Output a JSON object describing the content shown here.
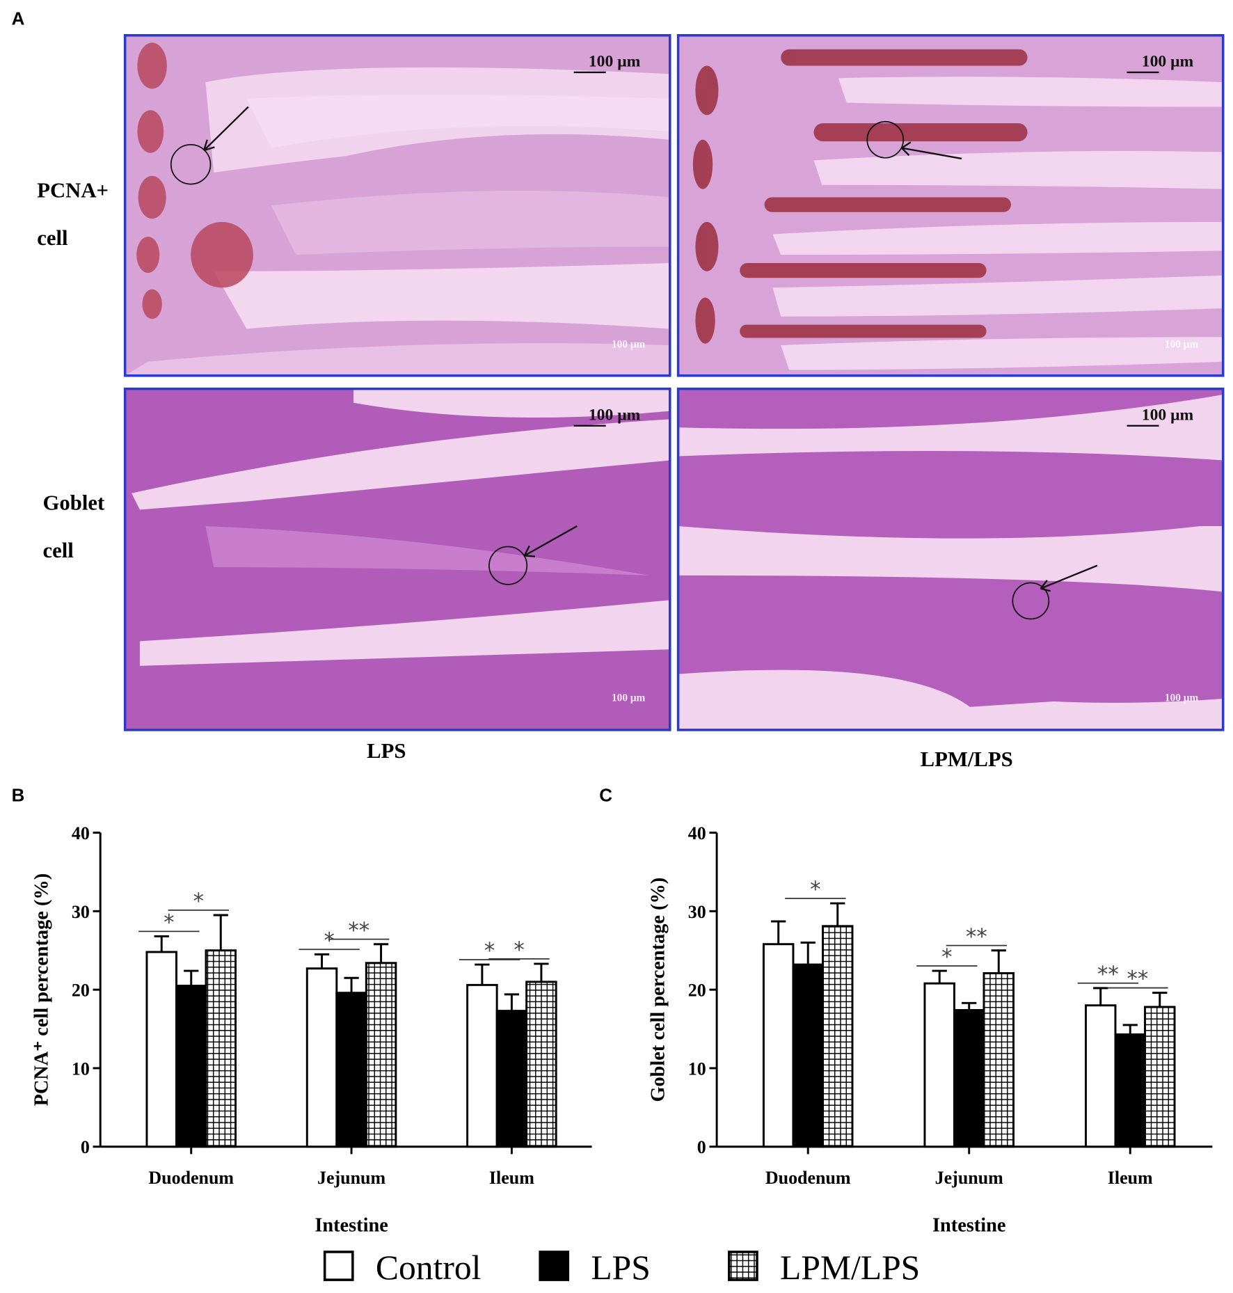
{
  "panel_labels": [
    "A",
    "B",
    "C"
  ],
  "micrographs": {
    "row_labels": [
      [
        "PCNA+",
        "cell"
      ],
      [
        "Goblet",
        "cell"
      ]
    ],
    "column_labels": [
      "LPS",
      "LPM/LPS"
    ],
    "scale_bar": "100 μm"
  },
  "chart_data": [
    {
      "type": "bar",
      "y_label": "PCNA⁺ cell percentage (%)",
      "x_label": "Intestine",
      "categories": [
        "Duodenum",
        "Jejunum",
        "Ileum"
      ],
      "series": [
        {
          "name": "Control",
          "color": "#ffffff",
          "values": [
            24.8,
            22.7,
            20.6
          ],
          "errors": [
            2.0,
            1.8,
            2.6
          ]
        },
        {
          "name": "LPS",
          "color": "#000000",
          "values": [
            20.5,
            19.6,
            17.3
          ],
          "errors": [
            1.9,
            1.9,
            2.1
          ]
        },
        {
          "name": "LPM/LPS",
          "color": "#ffffff",
          "hatch": "grid",
          "values": [
            25.0,
            23.4,
            21.0
          ],
          "errors": [
            4.5,
            2.4,
            2.3
          ]
        }
      ],
      "significance": [
        [
          "*",
          "*"
        ],
        [
          "*",
          "**"
        ],
        [
          "*",
          "*"
        ]
      ],
      "ylim": [
        0,
        40
      ],
      "yticks": [
        0,
        10,
        20,
        30,
        40
      ]
    },
    {
      "type": "bar",
      "y_label": "Goblet cell percentage (%)",
      "x_label": "Intestine",
      "categories": [
        "Duodenum",
        "Jejunum",
        "Ileum"
      ],
      "series": [
        {
          "name": "Control",
          "color": "#ffffff",
          "values": [
            25.8,
            20.8,
            18.0
          ],
          "errors": [
            2.9,
            1.6,
            2.2
          ]
        },
        {
          "name": "LPS",
          "color": "#000000",
          "values": [
            23.2,
            17.4,
            14.3
          ],
          "errors": [
            2.8,
            0.9,
            1.2
          ]
        },
        {
          "name": "LPM/LPS",
          "color": "#ffffff",
          "hatch": "grid",
          "values": [
            28.1,
            22.1,
            17.8
          ],
          "errors": [
            2.9,
            2.9,
            1.8
          ]
        }
      ],
      "significance": [
        [
          null,
          "*"
        ],
        [
          "*",
          "**"
        ],
        [
          "**",
          "**"
        ]
      ],
      "ylim": [
        0,
        40
      ],
      "yticks": [
        0,
        10,
        20,
        30,
        40
      ]
    }
  ]
}
